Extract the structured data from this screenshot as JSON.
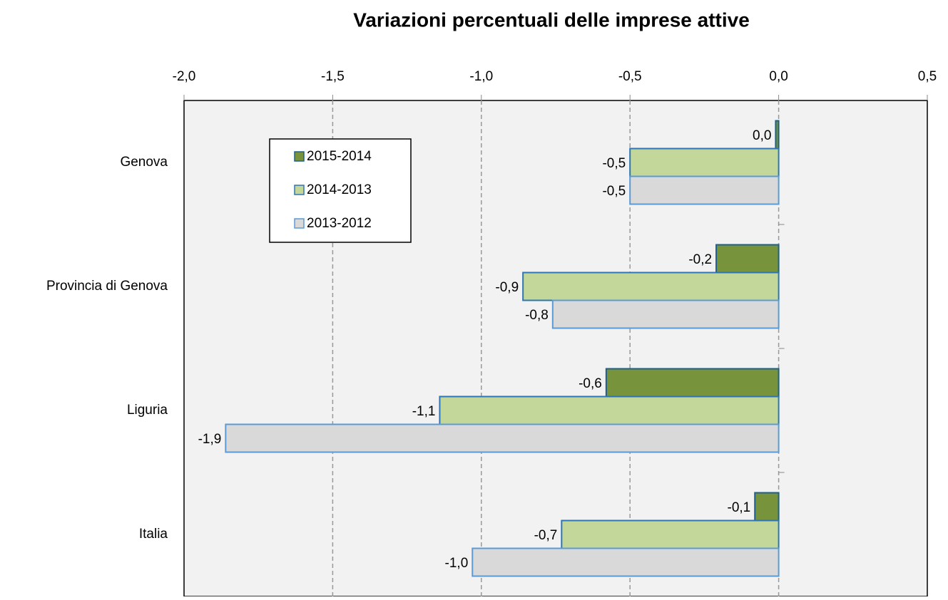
{
  "chart_data": {
    "type": "barh",
    "title": "Variazioni percentuali delle imprese attive",
    "categories": [
      "Genova",
      "Provincia di Genova",
      "Liguria",
      "Italia"
    ],
    "series": [
      {
        "name": "2015-2014",
        "color": "#77933c",
        "border": "#1f5f8b",
        "values": [
          -0.01,
          -0.21,
          -0.58,
          -0.08
        ],
        "value_labels": [
          "0,0",
          "-0,2",
          "-0,6",
          "-0,1"
        ]
      },
      {
        "name": "2014-2013",
        "color": "#c4d79b",
        "border": "#2e75b6",
        "values": [
          -0.5,
          -0.86,
          -1.14,
          -0.73
        ],
        "value_labels": [
          "-0,5",
          "-0,9",
          "-1,1",
          "-0,7"
        ]
      },
      {
        "name": "2013-2012",
        "color": "#d9d9d9",
        "border": "#5b9bd5",
        "values": [
          -0.5,
          -0.76,
          -1.86,
          -1.03
        ],
        "value_labels": [
          "-0,5",
          "-0,8",
          "-1,9",
          "-1,0"
        ]
      }
    ],
    "xlim": [
      -2,
      0.5
    ],
    "xticks": [
      {
        "value": -2,
        "label": "-2,0"
      },
      {
        "value": -1.5,
        "label": "-1,5"
      },
      {
        "value": -1,
        "label": "-1,0"
      },
      {
        "value": -0.5,
        "label": "-0,5"
      },
      {
        "value": 0,
        "label": "0,0"
      },
      {
        "value": 0.5,
        "label": "0,5"
      }
    ],
    "grid": true,
    "legend": "upper-left"
  }
}
